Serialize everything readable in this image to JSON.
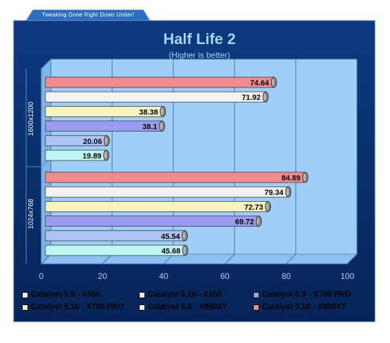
{
  "banner": {
    "text": "Tweaking Done Right Down Under!"
  },
  "chart_data": {
    "type": "bar",
    "orientation": "horizontal",
    "title": "Half Life 2",
    "subtitle": "(Higher is better)",
    "xlabel": "",
    "ylabel": "",
    "xlim": [
      0,
      100
    ],
    "x_ticks": [
      "0",
      "20",
      "40",
      "60",
      "80",
      "100"
    ],
    "grid": true,
    "legend_position": "bottom",
    "categories": [
      "1600x1200",
      "1024x768"
    ],
    "series": [
      {
        "name": "Catalyst 5.9 - X550",
        "color": "#bff5f2",
        "values": [
          19.89,
          45.68
        ]
      },
      {
        "name": "Catalyst 5.10 - X550",
        "color": "#adc4f2",
        "values": [
          20.06,
          45.54
        ]
      },
      {
        "name": "Catalyst 5.9 - X700 PRO",
        "color": "#9b9bf0",
        "values": [
          38.1,
          69.72
        ]
      },
      {
        "name": "Catalyst 5.10 - X700 PRO",
        "color": "#f6f3bf",
        "values": [
          38.38,
          72.73
        ]
      },
      {
        "name": "Catalyst 5.9 - X850XT",
        "color": "#f2f2f2",
        "values": [
          71.92,
          79.34
        ]
      },
      {
        "name": "Catalyst 5.10 - X850XT",
        "color": "#f28c8c",
        "values": [
          74.64,
          84.89
        ]
      }
    ],
    "value_labels": [
      [
        "19.89",
        "20.06",
        "38.1",
        "38.38",
        "71.92",
        "74.64"
      ],
      [
        "45.68",
        "45.54",
        "69.72",
        "72.73",
        "79.34",
        "84.89"
      ]
    ]
  },
  "legend": {
    "items": [
      "Catalyst 5.9 - X550",
      "Catalyst 5.10 - X550",
      "Catalyst 5.9 - X700 PRO",
      "Catalyst 5.10 - X700 PRO",
      "Catalyst 5.9 - X850XT",
      "Catalyst 5.10 - X850XT"
    ]
  },
  "colors": {
    "frame": "#0a2f6b",
    "plot_back": "#9fcff8",
    "grid": "#2f77b0",
    "banner": "#2c6fc0",
    "title": "#a9d2f7"
  }
}
